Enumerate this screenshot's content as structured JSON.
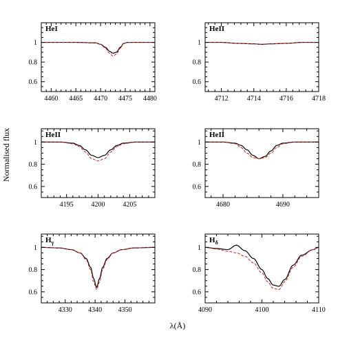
{
  "figure": {
    "ylabel": "Normalised flux",
    "xlabel": "λ(Å)"
  },
  "colors": {
    "observed": "#000000",
    "model": "#d62020"
  },
  "chart_data": [
    {
      "type": "line",
      "label": "HeI",
      "label_sub": "",
      "xlim": [
        4458,
        4481
      ],
      "ylim": [
        0.5,
        1.2
      ],
      "x_ticks": [
        4460,
        4465,
        4470,
        4475,
        4480
      ],
      "y_ticks": [
        0.6,
        0.8,
        1
      ],
      "y_tick_labels": [
        "0.6",
        "0.8",
        "1"
      ],
      "line": {
        "center": 4472.6,
        "width": 1.0
      },
      "series": [
        {
          "role": "observed",
          "x": [
            4458,
            4465,
            4469,
            4470,
            4471,
            4471.8,
            4472.5,
            4473.2,
            4474,
            4474.7,
            4475.5,
            4477,
            4481
          ],
          "y": [
            1.0,
            1.0,
            0.995,
            0.98,
            0.95,
            0.91,
            0.89,
            0.9,
            0.95,
            0.99,
            1.0,
            1.0,
            1.0
          ]
        },
        {
          "role": "model",
          "x": [
            4458,
            4465,
            4469,
            4470,
            4471,
            4471.8,
            4472.5,
            4473.2,
            4474,
            4474.7,
            4475.5,
            4477,
            4481
          ],
          "y": [
            1.0,
            1.0,
            0.995,
            0.98,
            0.94,
            0.89,
            0.86,
            0.88,
            0.94,
            0.99,
            1.0,
            1.0,
            1.0
          ]
        }
      ]
    },
    {
      "type": "line",
      "label": "HeII",
      "label_sub": "",
      "xlim": [
        4711,
        4718
      ],
      "ylim": [
        0.5,
        1.2
      ],
      "x_ticks": [
        4712,
        4714,
        4716,
        4718
      ],
      "y_ticks": [
        0.6,
        0.8,
        1
      ],
      "y_tick_labels": [
        "0.6",
        "0.8",
        "1"
      ],
      "line": {
        "center": 4714.5,
        "width": 1.5
      },
      "series": [
        {
          "role": "observed",
          "x": [
            4711,
            4712,
            4713,
            4714,
            4714.5,
            4715,
            4716,
            4717,
            4718
          ],
          "y": [
            1.0,
            1.0,
            0.99,
            0.985,
            0.98,
            0.985,
            0.99,
            1.0,
            1.0
          ]
        },
        {
          "role": "model",
          "x": [
            4711,
            4712,
            4713,
            4714,
            4714.5,
            4715,
            4716,
            4717,
            4718
          ],
          "y": [
            1.0,
            1.0,
            0.99,
            0.985,
            0.98,
            0.985,
            0.99,
            1.0,
            1.0
          ]
        }
      ]
    },
    {
      "type": "line",
      "label": "HeII",
      "label_sub": "",
      "xlim": [
        4191,
        4209
      ],
      "ylim": [
        0.5,
        1.12
      ],
      "x_ticks": [
        4195,
        4200,
        4205
      ],
      "y_ticks": [
        0.6,
        0.8,
        1
      ],
      "y_tick_labels": [
        "0.6",
        "0.8",
        "1"
      ],
      "line": {
        "center": 4200,
        "width": 3.0
      },
      "series": [
        {
          "role": "observed",
          "x": [
            4191,
            4194,
            4196,
            4197,
            4198,
            4199,
            4200,
            4201,
            4202,
            4203,
            4204,
            4206,
            4209
          ],
          "y": [
            1.0,
            1.0,
            0.99,
            0.97,
            0.93,
            0.88,
            0.86,
            0.88,
            0.93,
            0.97,
            0.99,
            1.0,
            1.0
          ]
        },
        {
          "role": "model",
          "x": [
            4191,
            4194,
            4196,
            4197,
            4198,
            4199,
            4200,
            4201,
            4202,
            4203,
            4204,
            4206,
            4209
          ],
          "y": [
            1.0,
            1.0,
            0.985,
            0.96,
            0.91,
            0.85,
            0.83,
            0.85,
            0.91,
            0.96,
            0.985,
            1.0,
            1.0
          ]
        }
      ]
    },
    {
      "type": "line",
      "label": "HeII",
      "label_sub": "",
      "xlim": [
        4677,
        4696
      ],
      "ylim": [
        0.5,
        1.12
      ],
      "x_ticks": [
        4680,
        4690
      ],
      "y_ticks": [
        0.6,
        0.8,
        1
      ],
      "y_tick_labels": [
        "0.6",
        "0.8",
        "1"
      ],
      "line": {
        "center": 4686,
        "width": 2.5
      },
      "series": [
        {
          "role": "observed",
          "x": [
            4677,
            4680,
            4682,
            4683,
            4684,
            4685,
            4686,
            4687,
            4688,
            4689,
            4690,
            4692,
            4696
          ],
          "y": [
            1.0,
            1.0,
            0.99,
            0.97,
            0.93,
            0.88,
            0.85,
            0.87,
            0.92,
            0.97,
            0.99,
            1.0,
            1.0
          ]
        },
        {
          "role": "model",
          "x": [
            4677,
            4680,
            4682,
            4683,
            4684,
            4685,
            4686,
            4687,
            4688,
            4689,
            4690,
            4692,
            4696
          ],
          "y": [
            1.0,
            1.0,
            0.985,
            0.95,
            0.9,
            0.86,
            0.85,
            0.86,
            0.9,
            0.95,
            0.985,
            1.0,
            1.0
          ]
        }
      ]
    },
    {
      "type": "line",
      "label": "H",
      "label_sub": "γ",
      "xlim": [
        4322,
        4360
      ],
      "ylim": [
        0.5,
        1.12
      ],
      "x_ticks": [
        4330,
        4340,
        4350
      ],
      "y_ticks": [
        0.6,
        0.8,
        1
      ],
      "y_tick_labels": [
        "0.6",
        "0.8",
        "1"
      ],
      "line": {
        "center": 4340.5,
        "width": 6
      },
      "series": [
        {
          "role": "observed",
          "x": [
            4322,
            4328,
            4332,
            4335,
            4337,
            4338.5,
            4339.5,
            4340.5,
            4341.5,
            4342.5,
            4344,
            4346,
            4349,
            4353,
            4360
          ],
          "y": [
            1.0,
            0.995,
            0.98,
            0.95,
            0.9,
            0.82,
            0.72,
            0.64,
            0.72,
            0.82,
            0.9,
            0.95,
            0.98,
            0.995,
            1.0
          ]
        },
        {
          "role": "model",
          "x": [
            4322,
            4328,
            4332,
            4335,
            4337,
            4338.5,
            4339.5,
            4340.5,
            4341.5,
            4342.5,
            4344,
            4346,
            4349,
            4353,
            4360
          ],
          "y": [
            1.0,
            0.995,
            0.98,
            0.95,
            0.89,
            0.8,
            0.69,
            0.62,
            0.69,
            0.8,
            0.89,
            0.95,
            0.98,
            0.995,
            1.0
          ]
        }
      ]
    },
    {
      "type": "line",
      "label": "H",
      "label_sub": "δ",
      "xlim": [
        4090,
        4110
      ],
      "ylim": [
        0.5,
        1.12
      ],
      "x_ticks": [
        4090,
        4100,
        4110
      ],
      "y_ticks": [
        0.6,
        0.8,
        1
      ],
      "y_tick_labels": [
        "0.6",
        "0.8",
        "1"
      ],
      "line": {
        "center": 4102,
        "width": 6
      },
      "series": [
        {
          "role": "observed",
          "x": [
            4090,
            4092,
            4094,
            4095.5,
            4097,
            4098.5,
            4100,
            4101,
            4102,
            4103,
            4104,
            4105.5,
            4107,
            4109,
            4110
          ],
          "y": [
            1.0,
            0.99,
            0.98,
            1.02,
            0.97,
            0.9,
            0.8,
            0.72,
            0.66,
            0.65,
            0.71,
            0.84,
            0.93,
            0.98,
            1.0
          ]
        },
        {
          "role": "model",
          "x": [
            4090,
            4092,
            4094,
            4095.5,
            4097,
            4098.5,
            4100,
            4101,
            4102,
            4103,
            4104,
            4105.5,
            4107,
            4109,
            4110
          ],
          "y": [
            1.0,
            0.985,
            0.965,
            0.95,
            0.92,
            0.86,
            0.77,
            0.69,
            0.63,
            0.62,
            0.69,
            0.82,
            0.92,
            0.98,
            1.0
          ]
        }
      ]
    }
  ]
}
